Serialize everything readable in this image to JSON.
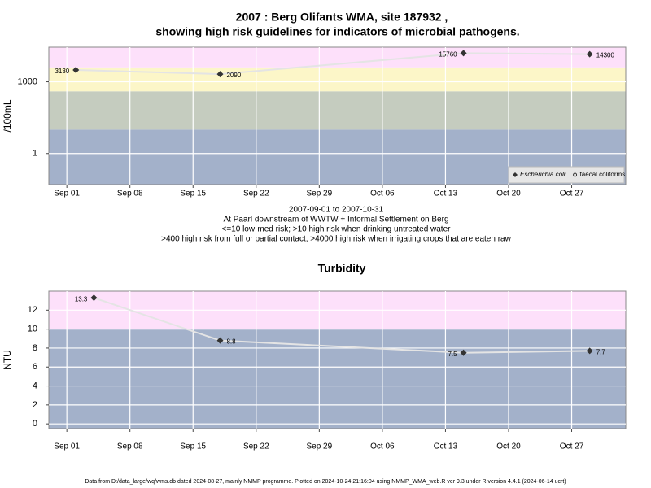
{
  "chart_data": [
    {
      "type": "line",
      "title": "2007 : Berg Olifants WMA, site 187932 ,",
      "subtitle": "showing high risk guidelines for indicators of microbial pathogens.",
      "y_label": "/100mL",
      "log_scale": true,
      "ylim": [
        0.05,
        28000
      ],
      "yticks": [
        1,
        1000
      ],
      "xlim": [
        "Aug 30",
        "Nov 02"
      ],
      "xticks": [
        "Sep 01",
        "Sep 08",
        "Sep 15",
        "Sep 22",
        "Sep 29",
        "Oct 06",
        "Oct 13",
        "Oct 20",
        "Oct 27"
      ],
      "x": [
        "Sep 02",
        "Sep 18",
        "Oct 15",
        "Oct 29"
      ],
      "series": [
        {
          "name": "Escherichia coli",
          "color": "#333333",
          "line_color": "#e4e4e4",
          "values": [
            3130,
            2090,
            15760,
            14300
          ]
        },
        {
          "name": "faecal coliforms",
          "color": "#333333",
          "line_color": "#e4e4e4",
          "values": [
            null,
            null,
            null,
            null
          ]
        }
      ],
      "thresholds": [
        10,
        400,
        4000
      ],
      "band_colors": [
        "#a3b1ca",
        "#c5ccbf",
        "#fcf6c8",
        "#fde0fa"
      ],
      "grid": true,
      "legend": "bottom-right",
      "notes": [
        "2007-09-01 to 2007-10-31",
        "At Paarl downstream of WWTW + Informal Settlement on Berg",
        "<=10 low-med risk; >10 high risk when drinking untreated water",
        ">400 high risk from full or partial contact; >4000 high risk when irrigating crops that are eaten raw"
      ]
    },
    {
      "type": "line",
      "title": "Turbidity",
      "y_label": "NTU",
      "log_scale": false,
      "ylim": [
        -0.5,
        14
      ],
      "yticks": [
        0,
        2,
        4,
        6,
        8,
        10,
        12
      ],
      "xlim": [
        "Aug 30",
        "Nov 02"
      ],
      "xticks": [
        "Sep 01",
        "Sep 08",
        "Sep 15",
        "Sep 22",
        "Sep 29",
        "Oct 06",
        "Oct 13",
        "Oct 20",
        "Oct 27"
      ],
      "x": [
        "Sep 04",
        "Sep 18",
        "Oct 15",
        "Oct 29"
      ],
      "series": [
        {
          "name": "Turbidity",
          "color": "#333333",
          "line_color": "#e4e4e4",
          "values": [
            13.3,
            8.8,
            7.5,
            7.7
          ]
        }
      ],
      "thresholds": [
        10
      ],
      "band_colors": [
        "#a3b1ca",
        "#fde0fa"
      ],
      "grid": true
    }
  ],
  "footer": "Data from D:/data_large/wq/wms.db dated 2024-08-27, mainly NMMP programme. Plotted on 2024-10-24 21:16:04 using NMMP_WMA_web.R ver 9.3 under R version 4.4.1 (2024-06-14 ucrt)"
}
